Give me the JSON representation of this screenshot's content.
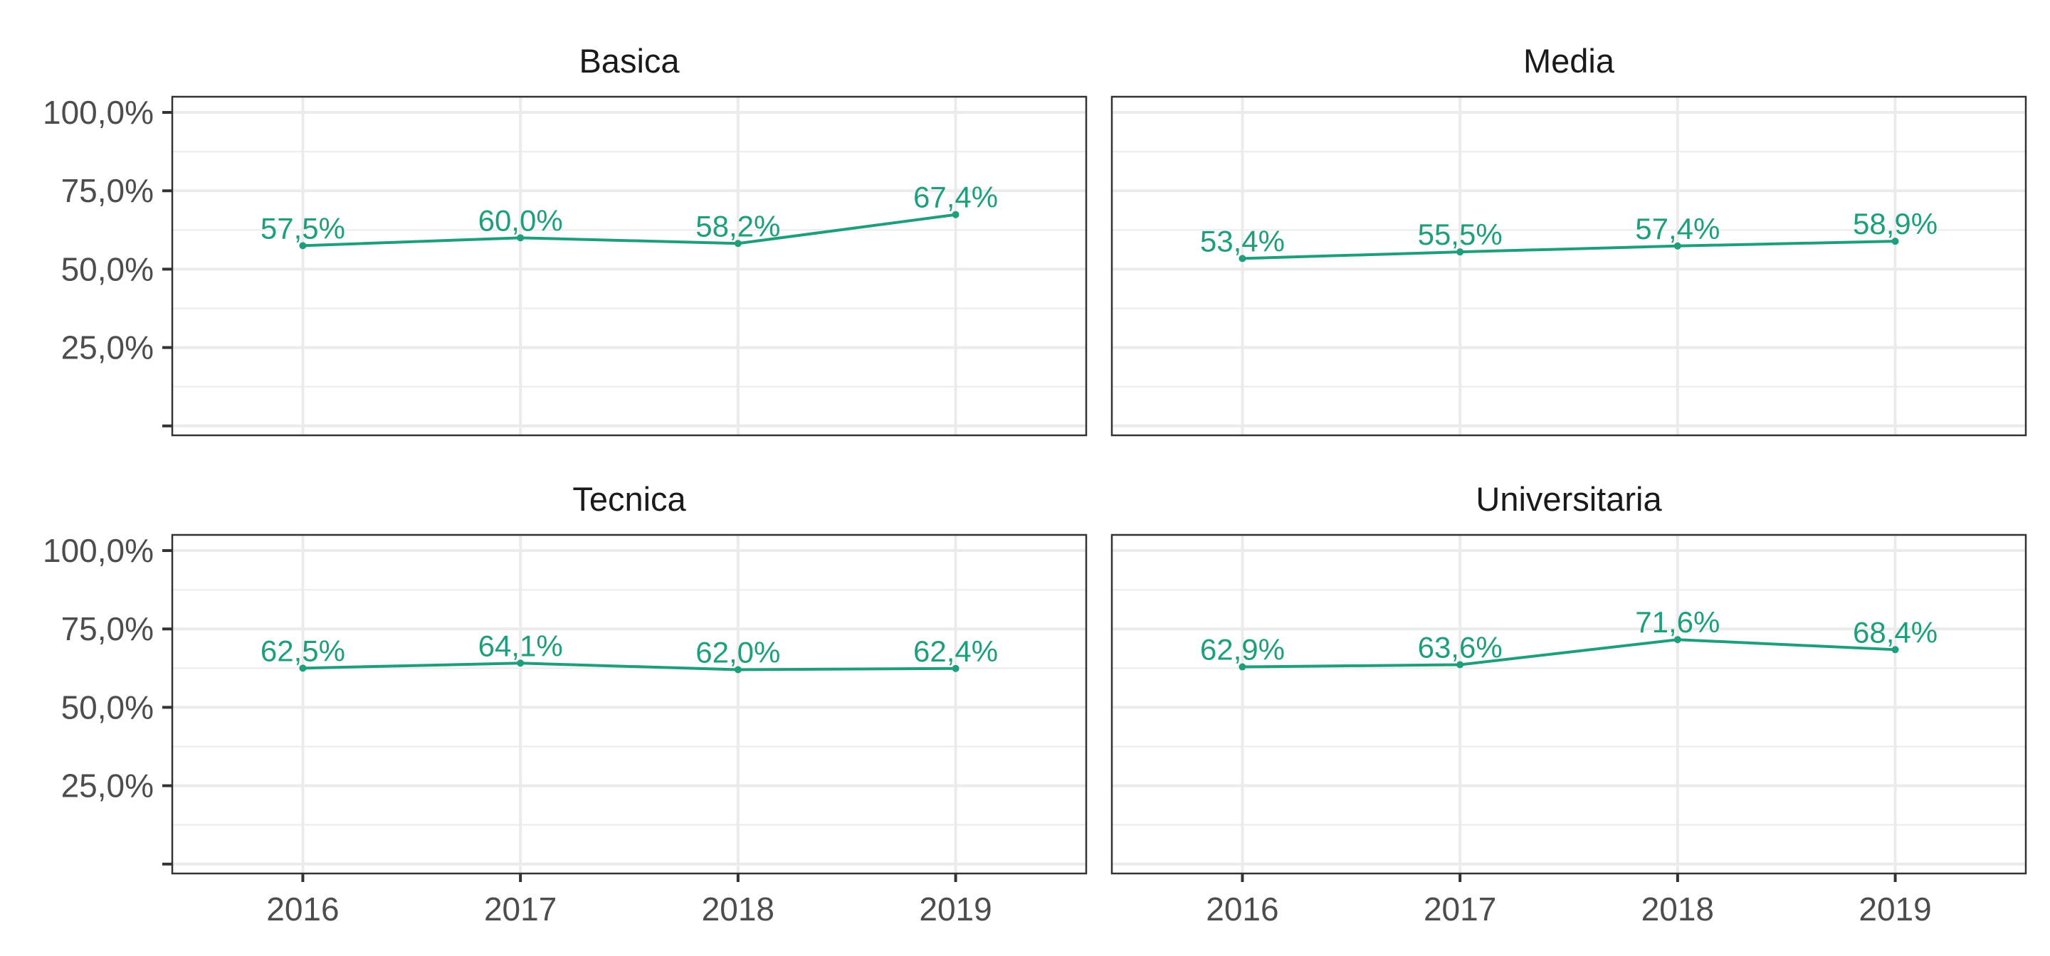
{
  "chart_data": {
    "type": "line",
    "line_color": "#1f9e7d",
    "x": [
      "2016",
      "2017",
      "2018",
      "2019"
    ],
    "ylim": [
      0,
      1
    ],
    "y_ticks": [
      0.25,
      0.5,
      0.75,
      1.0
    ],
    "y_tick_labels": [
      "25,0%",
      "50,0%",
      "75,0%",
      "100,0%"
    ],
    "grid": true,
    "panels": [
      {
        "name": "Basica",
        "values": [
          0.575,
          0.6,
          0.582,
          0.674
        ],
        "labels": [
          "57,5%",
          "60,0%",
          "58,2%",
          "67,4%"
        ]
      },
      {
        "name": "Media",
        "values": [
          0.534,
          0.555,
          0.574,
          0.589
        ],
        "labels": [
          "53,4%",
          "55,5%",
          "57,4%",
          "58,9%"
        ]
      },
      {
        "name": "Tecnica",
        "values": [
          0.625,
          0.641,
          0.62,
          0.624
        ],
        "labels": [
          "62,5%",
          "64,1%",
          "62,0%",
          "62,4%"
        ]
      },
      {
        "name": "Universitaria",
        "values": [
          0.629,
          0.636,
          0.716,
          0.684
        ],
        "labels": [
          "62,9%",
          "63,6%",
          "71,6%",
          "68,4%"
        ]
      }
    ]
  }
}
